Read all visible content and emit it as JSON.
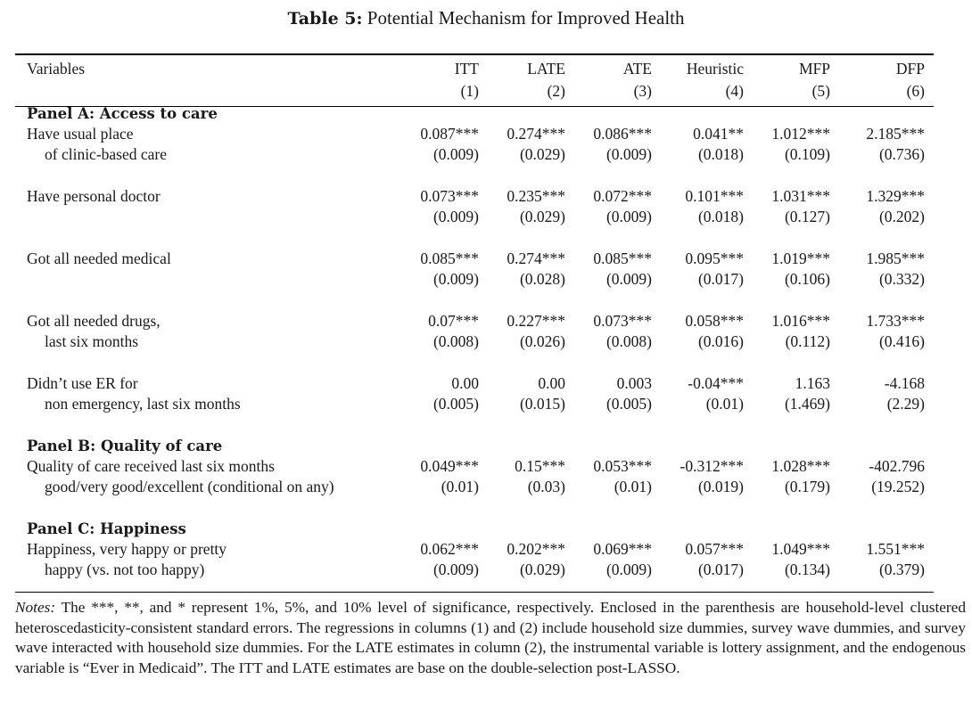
{
  "table_label": "Table 5:",
  "table_title": "Potential Mechanism for Improved Health",
  "header": {
    "variables_label": "Variables",
    "columns": [
      {
        "name": "ITT",
        "number": "(1)"
      },
      {
        "name": "LATE",
        "number": "(2)"
      },
      {
        "name": "ATE",
        "number": "(3)"
      },
      {
        "name": "Heuristic",
        "number": "(4)"
      },
      {
        "name": "MFP",
        "number": "(5)"
      },
      {
        "name": "DFP",
        "number": "(6)"
      }
    ]
  },
  "panels": [
    {
      "title": "Panel A: Access to care",
      "rows": [
        {
          "label": [
            "Have usual place",
            "of clinic-based care"
          ],
          "coef": [
            "0.087***",
            "0.274***",
            "0.086***",
            "0.041**",
            "1.012***",
            "2.185***"
          ],
          "se": [
            "(0.009)",
            "(0.029)",
            "(0.009)",
            "(0.018)",
            "(0.109)",
            "(0.736)"
          ]
        },
        {
          "label": [
            "Have personal doctor",
            ""
          ],
          "coef": [
            "0.073***",
            "0.235***",
            "0.072***",
            "0.101***",
            "1.031***",
            "1.329***"
          ],
          "se": [
            "(0.009)",
            "(0.029)",
            "(0.009)",
            "(0.018)",
            "(0.127)",
            "(0.202)"
          ]
        },
        {
          "label": [
            "Got all needed medical",
            ""
          ],
          "coef": [
            "0.085***",
            "0.274***",
            "0.085***",
            "0.095***",
            "1.019***",
            "1.985***"
          ],
          "se": [
            "(0.009)",
            "(0.028)",
            "(0.009)",
            "(0.017)",
            "(0.106)",
            "(0.332)"
          ]
        },
        {
          "label": [
            "Got all needed drugs,",
            "last six months"
          ],
          "coef": [
            "0.07***",
            "0.227***",
            "0.073***",
            "0.058***",
            "1.016***",
            "1.733***"
          ],
          "se": [
            "(0.008)",
            "(0.026)",
            "(0.008)",
            "(0.016)",
            "(0.112)",
            "(0.416)"
          ]
        },
        {
          "label": [
            "Didn’t use ER for",
            "non emergency, last six months"
          ],
          "coef": [
            "0.00",
            "0.00",
            "0.003",
            "-0.04***",
            "1.163",
            "-4.168"
          ],
          "se": [
            "(0.005)",
            "(0.015)",
            "(0.005)",
            "(0.01)",
            "(1.469)",
            "(2.29)"
          ]
        }
      ]
    },
    {
      "title": "Panel B: Quality of care",
      "rows": [
        {
          "label": [
            "Quality of care received last six months",
            "good/very good/excellent (conditional on any)"
          ],
          "coef": [
            "0.049***",
            "0.15***",
            "0.053***",
            "-0.312***",
            "1.028***",
            "-402.796"
          ],
          "se": [
            "(0.01)",
            "(0.03)",
            "(0.01)",
            "(0.019)",
            "(0.179)",
            "(19.252)"
          ]
        }
      ]
    },
    {
      "title": "Panel C: Happiness",
      "rows": [
        {
          "label": [
            "Happiness, very happy or pretty",
            "happy (vs. not too happy)"
          ],
          "coef": [
            "0.062***",
            "0.202***",
            "0.069***",
            "0.057***",
            "1.049***",
            "1.551***"
          ],
          "se": [
            "(0.009)",
            "(0.029)",
            "(0.009)",
            "(0.017)",
            "(0.134)",
            "(0.379)"
          ]
        }
      ]
    }
  ],
  "notes": {
    "label": "Notes:",
    "text": " The ***, **, and * represent 1%, 5%, and 10% level of significance, respectively. Enclosed in the parenthesis are household-level clustered heteroscedasticity-consistent standard errors. The regressions in columns (1) and (2) include household size dummies, survey wave dummies, and survey wave interacted with household size dummies. For the LATE estimates in column (2), the instrumental variable is lottery assignment, and the endogenous variable is “Ever in Medicaid”. The ITT and LATE estimates are base on the double-selection post-LASSO."
  }
}
